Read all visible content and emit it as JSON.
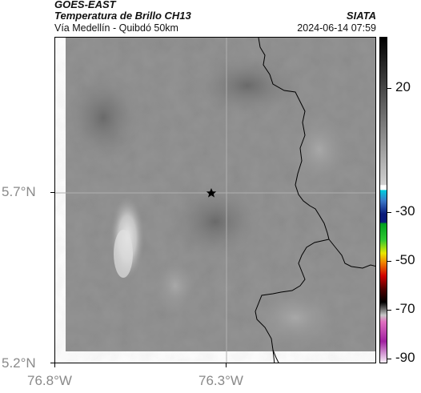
{
  "header": {
    "satellite": "GOES-EAST",
    "product": "Temperatura de Brillo CH13",
    "region": "Vía Medellín - Quibdó 50km",
    "org": "SIATA",
    "datetime": "2024-06-14 07:59"
  },
  "map": {
    "lat_ticks": [
      "5.7°N",
      "5.2°N"
    ],
    "lon_ticks": [
      "76.8°W",
      "76.3°W"
    ],
    "marker": "star-icon",
    "colors": {
      "cloud_gray": "#8c8c8c",
      "bright_cloud": "#e6e6e6",
      "coast_line": "#000000"
    }
  },
  "colorbar": {
    "labels": [
      "20",
      "-30",
      "-50",
      "-70",
      "-90"
    ]
  }
}
